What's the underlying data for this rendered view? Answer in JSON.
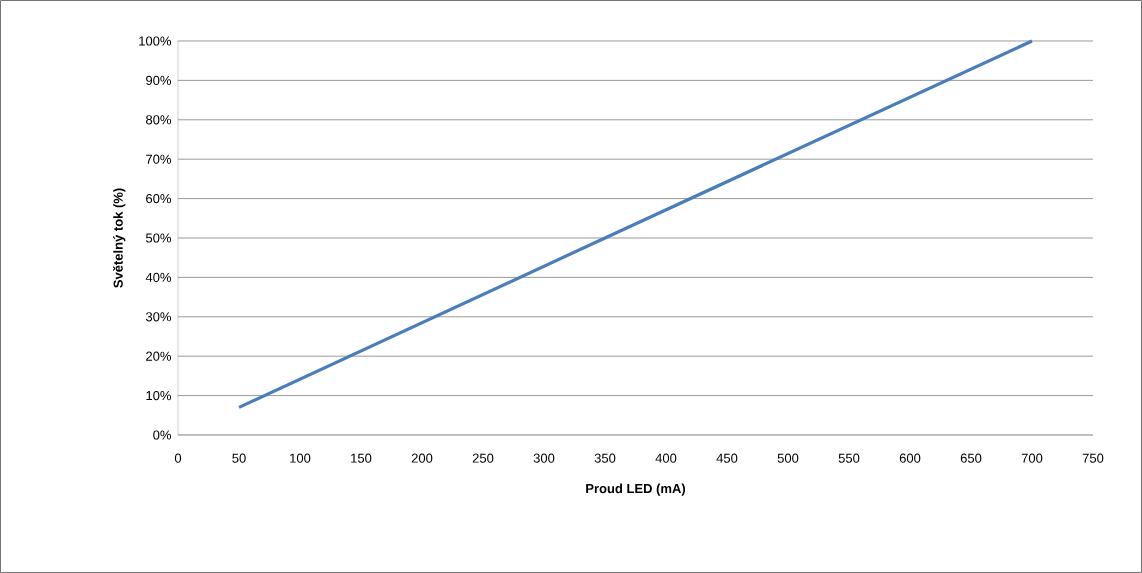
{
  "chart_data": {
    "type": "line",
    "xlabel": "Proud LED (mA)",
    "ylabel": "Světelný tok (%)",
    "x": [
      50,
      350,
      700
    ],
    "series": [
      {
        "color": "#4a7ebb",
        "values": [
          7,
          50,
          100
        ]
      }
    ],
    "xlim": [
      0,
      750
    ],
    "xticks": [
      0,
      50,
      100,
      150,
      200,
      250,
      300,
      350,
      400,
      450,
      500,
      550,
      600,
      650,
      700,
      750
    ],
    "ylim": [
      0,
      100
    ],
    "yticks": [
      {
        "value": 0,
        "label": "0%"
      },
      {
        "value": 10,
        "label": "10%"
      },
      {
        "value": 20,
        "label": "20%"
      },
      {
        "value": 30,
        "label": "30%"
      },
      {
        "value": 40,
        "label": "40%"
      },
      {
        "value": 50,
        "label": "50%"
      },
      {
        "value": 60,
        "label": "60%"
      },
      {
        "value": 70,
        "label": "70%"
      },
      {
        "value": 80,
        "label": "80%"
      },
      {
        "value": 90,
        "label": "90%"
      },
      {
        "value": 100,
        "label": "100%"
      }
    ],
    "grid": "y",
    "marker": "none",
    "line_style": "solid"
  }
}
